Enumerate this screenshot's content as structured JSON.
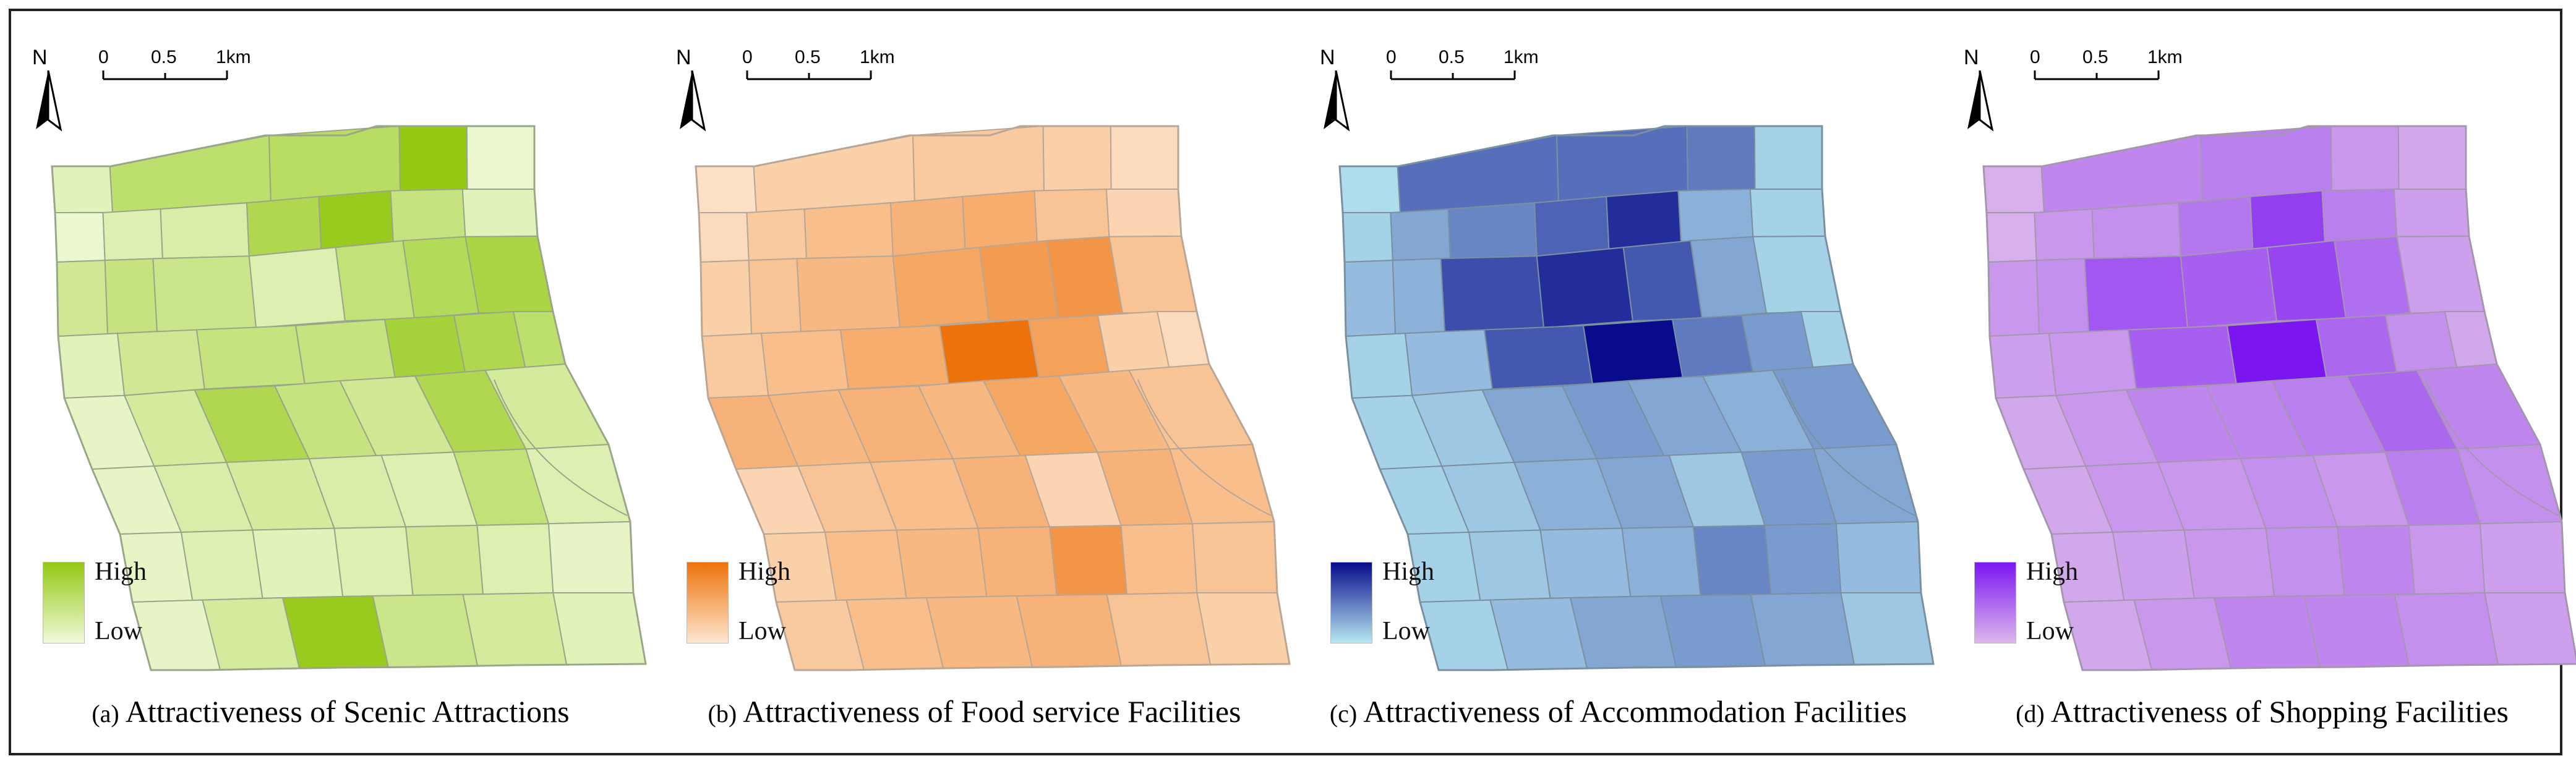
{
  "figure": {
    "panels": [
      {
        "id": "a",
        "tag": "(a)",
        "title": "Attractiveness of Scenic Attractions",
        "palette": {
          "low": "#f0f9d9",
          "high": "#94c914",
          "border": "#9aa68a"
        },
        "legend": {
          "high": "High",
          "low": "Low"
        },
        "north": "N",
        "scale": {
          "ticks": [
            "0",
            "0.5",
            "1km"
          ]
        },
        "intensities": [
          0.15,
          0.55,
          0.6,
          1.0,
          0.05,
          0.05,
          0.2,
          0.25,
          0.7,
          0.95,
          0.45,
          0.15,
          0.35,
          0.45,
          0.4,
          0.2,
          0.5,
          0.65,
          0.75,
          0.15,
          0.35,
          0.45,
          0.45,
          0.8,
          0.7,
          0.55,
          0.1,
          0.3,
          0.7,
          0.45,
          0.35,
          0.7,
          0.3,
          0.1,
          0.25,
          0.3,
          0.25,
          0.2,
          0.5,
          0.2,
          0.1,
          0.2,
          0.15,
          0.2,
          0.35,
          0.2,
          0.1,
          0.1,
          0.3,
          0.95,
          0.4,
          0.3,
          0.15,
          0.25,
          0.2,
          0.15,
          0.1
        ]
      },
      {
        "id": "b",
        "tag": "(b)",
        "title": "Attractiveness of Food service Facilities",
        "palette": {
          "low": "#fde7d0",
          "high": "#ee720c",
          "border": "#b8a696"
        },
        "legend": {
          "high": "High",
          "low": "Low"
        },
        "north": "N",
        "scale": {
          "ticks": [
            "0",
            "0.5",
            "1km"
          ]
        },
        "intensities": [
          0.05,
          0.2,
          0.25,
          0.2,
          0.1,
          0.1,
          0.25,
          0.35,
          0.45,
          0.5,
          0.3,
          0.15,
          0.2,
          0.3,
          0.4,
          0.55,
          0.65,
          0.7,
          0.3,
          0.25,
          0.35,
          0.5,
          1.0,
          0.6,
          0.2,
          0.1,
          0.45,
          0.4,
          0.45,
          0.4,
          0.55,
          0.4,
          0.3,
          0.15,
          0.3,
          0.35,
          0.45,
          0.15,
          0.45,
          0.35,
          0.2,
          0.35,
          0.4,
          0.45,
          0.7,
          0.35,
          0.3,
          0.25,
          0.35,
          0.4,
          0.45,
          0.3,
          0.2,
          0.25,
          0.25,
          0.2,
          0.1
        ]
      },
      {
        "id": "c",
        "tag": "(c)",
        "title": "Attractiveness of Accommodation Facilities",
        "palette": {
          "low": "#b8e8f2",
          "high": "#070b8c",
          "border": "#7a8fa0"
        },
        "legend": {
          "high": "High",
          "low": "Low"
        },
        "north": "N",
        "scale": {
          "ticks": [
            "0",
            "0.5",
            "1km"
          ]
        },
        "intensities": [
          0.05,
          0.55,
          0.55,
          0.5,
          0.1,
          0.1,
          0.3,
          0.45,
          0.6,
          0.85,
          0.25,
          0.1,
          0.2,
          0.25,
          0.7,
          0.85,
          0.65,
          0.3,
          0.1,
          0.1,
          0.2,
          0.65,
          1.0,
          0.5,
          0.35,
          0.1,
          0.1,
          0.15,
          0.3,
          0.35,
          0.3,
          0.25,
          0.35,
          0.1,
          0.15,
          0.25,
          0.3,
          0.15,
          0.35,
          0.3,
          0.1,
          0.15,
          0.2,
          0.25,
          0.45,
          0.35,
          0.2,
          0.1,
          0.2,
          0.3,
          0.35,
          0.3,
          0.15,
          0.2,
          0.2,
          0.25,
          0.15
        ]
      },
      {
        "id": "d",
        "tag": "(d)",
        "title": "Attractiveness of Shopping Facilities",
        "palette": {
          "low": "#dcb8ec",
          "high": "#7b16f2",
          "border": "#a696ad"
        },
        "legend": {
          "high": "High",
          "low": "Low"
        },
        "north": "N",
        "scale": {
          "ticks": [
            "0",
            "0.5",
            "1km"
          ]
        },
        "intensities": [
          0.05,
          0.3,
          0.35,
          0.2,
          0.1,
          0.05,
          0.2,
          0.25,
          0.4,
          0.75,
          0.35,
          0.15,
          0.2,
          0.25,
          0.6,
          0.55,
          0.7,
          0.45,
          0.15,
          0.15,
          0.2,
          0.55,
          1.0,
          0.5,
          0.25,
          0.1,
          0.1,
          0.2,
          0.3,
          0.3,
          0.35,
          0.5,
          0.3,
          0.1,
          0.2,
          0.2,
          0.25,
          0.2,
          0.35,
          0.25,
          0.1,
          0.15,
          0.2,
          0.25,
          0.3,
          0.2,
          0.15,
          0.1,
          0.2,
          0.3,
          0.3,
          0.25,
          0.15,
          0.15,
          0.2,
          0.15,
          0.1
        ]
      }
    ]
  }
}
